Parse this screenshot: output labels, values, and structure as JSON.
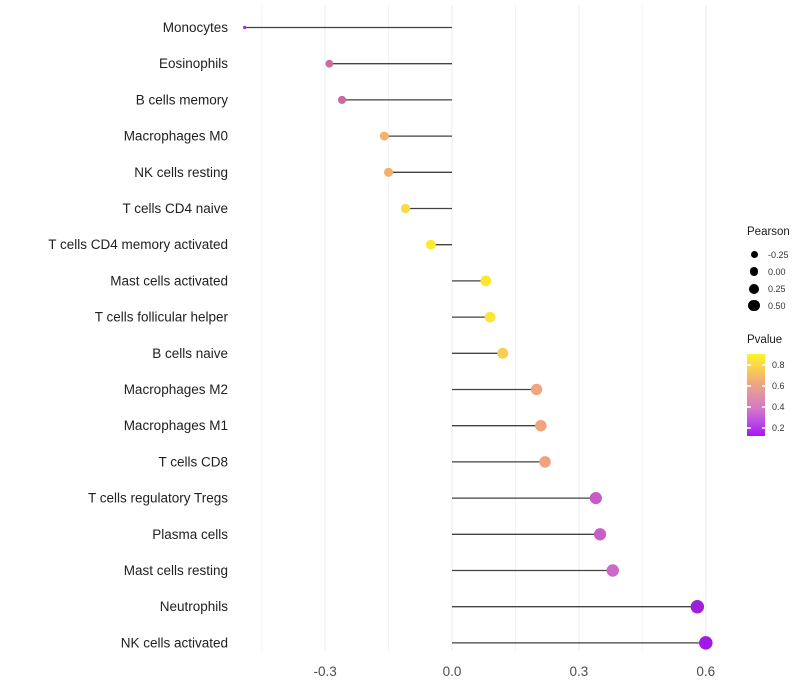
{
  "chart_data": {
    "type": "lollipop",
    "title": "",
    "xlabel": "",
    "ylabel": "",
    "xlim": [
      -0.54,
      0.65
    ],
    "grid": "vertical-only",
    "x_ticks": [
      -0.3,
      0.0,
      0.3,
      0.6
    ],
    "x_tick_labels": [
      "-0.3",
      "0.0",
      "0.3",
      "0.6"
    ],
    "x_minor_ticks": [
      -0.45,
      -0.15,
      0.15,
      0.45
    ],
    "points": [
      {
        "label": "Monocytes",
        "pearson": -0.49,
        "pvalue": 0.13,
        "color": "#9A3BD2"
      },
      {
        "label": "Eosinophils",
        "pearson": -0.29,
        "pvalue": 0.4,
        "color": "#CC6C9D"
      },
      {
        "label": "B cells memory",
        "pearson": -0.26,
        "pvalue": 0.4,
        "color": "#CB699E"
      },
      {
        "label": "Macrophages M0",
        "pearson": -0.16,
        "pvalue": 0.6,
        "color": "#F2B36B"
      },
      {
        "label": "NK cells resting",
        "pearson": -0.15,
        "pvalue": 0.6,
        "color": "#F1B169"
      },
      {
        "label": "T cells CD4 naive",
        "pearson": -0.11,
        "pvalue": 0.72,
        "color": "#F9DB4E"
      },
      {
        "label": "T cells CD4 memory activated",
        "pearson": -0.05,
        "pvalue": 0.85,
        "color": "#FBEA2F"
      },
      {
        "label": "Mast cells activated",
        "pearson": 0.08,
        "pvalue": 0.83,
        "color": "#FBE82E"
      },
      {
        "label": "T cells follicular helper",
        "pearson": 0.09,
        "pvalue": 0.8,
        "color": "#FAE63A"
      },
      {
        "label": "B cells naive",
        "pearson": 0.12,
        "pvalue": 0.68,
        "color": "#F8CF56"
      },
      {
        "label": "Macrophages M2",
        "pearson": 0.2,
        "pvalue": 0.55,
        "color": "#EFA57E"
      },
      {
        "label": "Macrophages M1",
        "pearson": 0.21,
        "pvalue": 0.55,
        "color": "#EFA47C"
      },
      {
        "label": "T cells CD8",
        "pearson": 0.22,
        "pvalue": 0.55,
        "color": "#EEA37E"
      },
      {
        "label": "T cells regulatory Tregs",
        "pearson": 0.34,
        "pvalue": 0.3,
        "color": "#C65BC5"
      },
      {
        "label": "Plasma cells",
        "pearson": 0.35,
        "pvalue": 0.3,
        "color": "#C75FC7"
      },
      {
        "label": "Mast cells resting",
        "pearson": 0.38,
        "pvalue": 0.28,
        "color": "#CC68C9"
      },
      {
        "label": "Neutrophils",
        "pearson": 0.58,
        "pvalue": 0.1,
        "color": "#9D1FD9"
      },
      {
        "label": "NK cells activated",
        "pearson": 0.6,
        "pvalue": 0.1,
        "color": "#A219E5"
      }
    ],
    "stem_color": "#424242",
    "major_grid_color": "#ebebeb",
    "minor_grid_color": "#f4f4f4",
    "axis_text_color": "#4d4d4d",
    "category_text_color": "#212121"
  },
  "legends": {
    "pearson": {
      "title": "Pearson",
      "items": [
        {
          "label": "-0.25",
          "value": -0.25
        },
        {
          "label": "0.00",
          "value": 0.0
        },
        {
          "label": "0.25",
          "value": 0.25
        },
        {
          "label": "0.50",
          "value": 0.5
        }
      ],
      "dot_color": "#000000"
    },
    "pvalue": {
      "title": "Pvalue",
      "ticks": [
        {
          "label": "0.8",
          "value": 0.8
        },
        {
          "label": "0.6",
          "value": 0.6
        },
        {
          "label": "0.4",
          "value": 0.4
        },
        {
          "label": "0.2",
          "value": 0.2
        }
      ],
      "bar_range": [
        0.905,
        0.124
      ],
      "gradient": [
        "#FCF22C",
        "#F9D24D",
        "#EFAC7B",
        "#E292A4",
        "#D377C7",
        "#BC4BE8",
        "#A716F2"
      ]
    }
  }
}
